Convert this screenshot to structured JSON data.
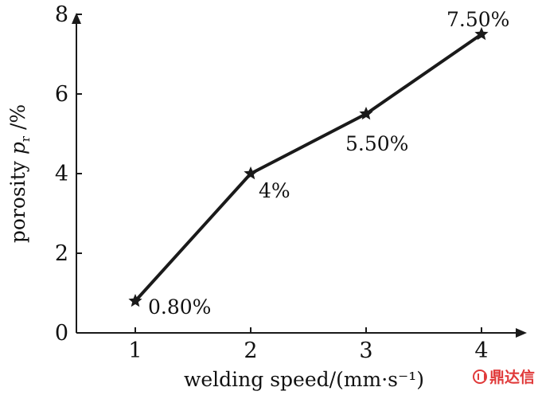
{
  "chart_data": {
    "type": "line",
    "xlabel": "welding speed/(mm·s⁻¹)",
    "ylabel_main": "porosity ",
    "ylabel_var": "p",
    "ylabel_sub": "r",
    "ylabel_unit": " /%",
    "xlim": [
      0.5,
      4.4
    ],
    "ylim": [
      0,
      8
    ],
    "x_ticks": [
      "1",
      "2",
      "3",
      "4"
    ],
    "y_ticks": [
      "0",
      "2",
      "4",
      "6",
      "8"
    ],
    "grid": false,
    "series": [
      {
        "x": [
          1,
          2,
          3,
          4
        ],
        "y": [
          0.8,
          4,
          5.5,
          7.5
        ],
        "labels": [
          "0.80%",
          "4%",
          "5.50%",
          "7.50%"
        ]
      }
    ],
    "line_color": "#1a1a1a",
    "marker": "star"
  },
  "watermark": {
    "text": "鼎达信",
    "color": "#e03a3a"
  }
}
